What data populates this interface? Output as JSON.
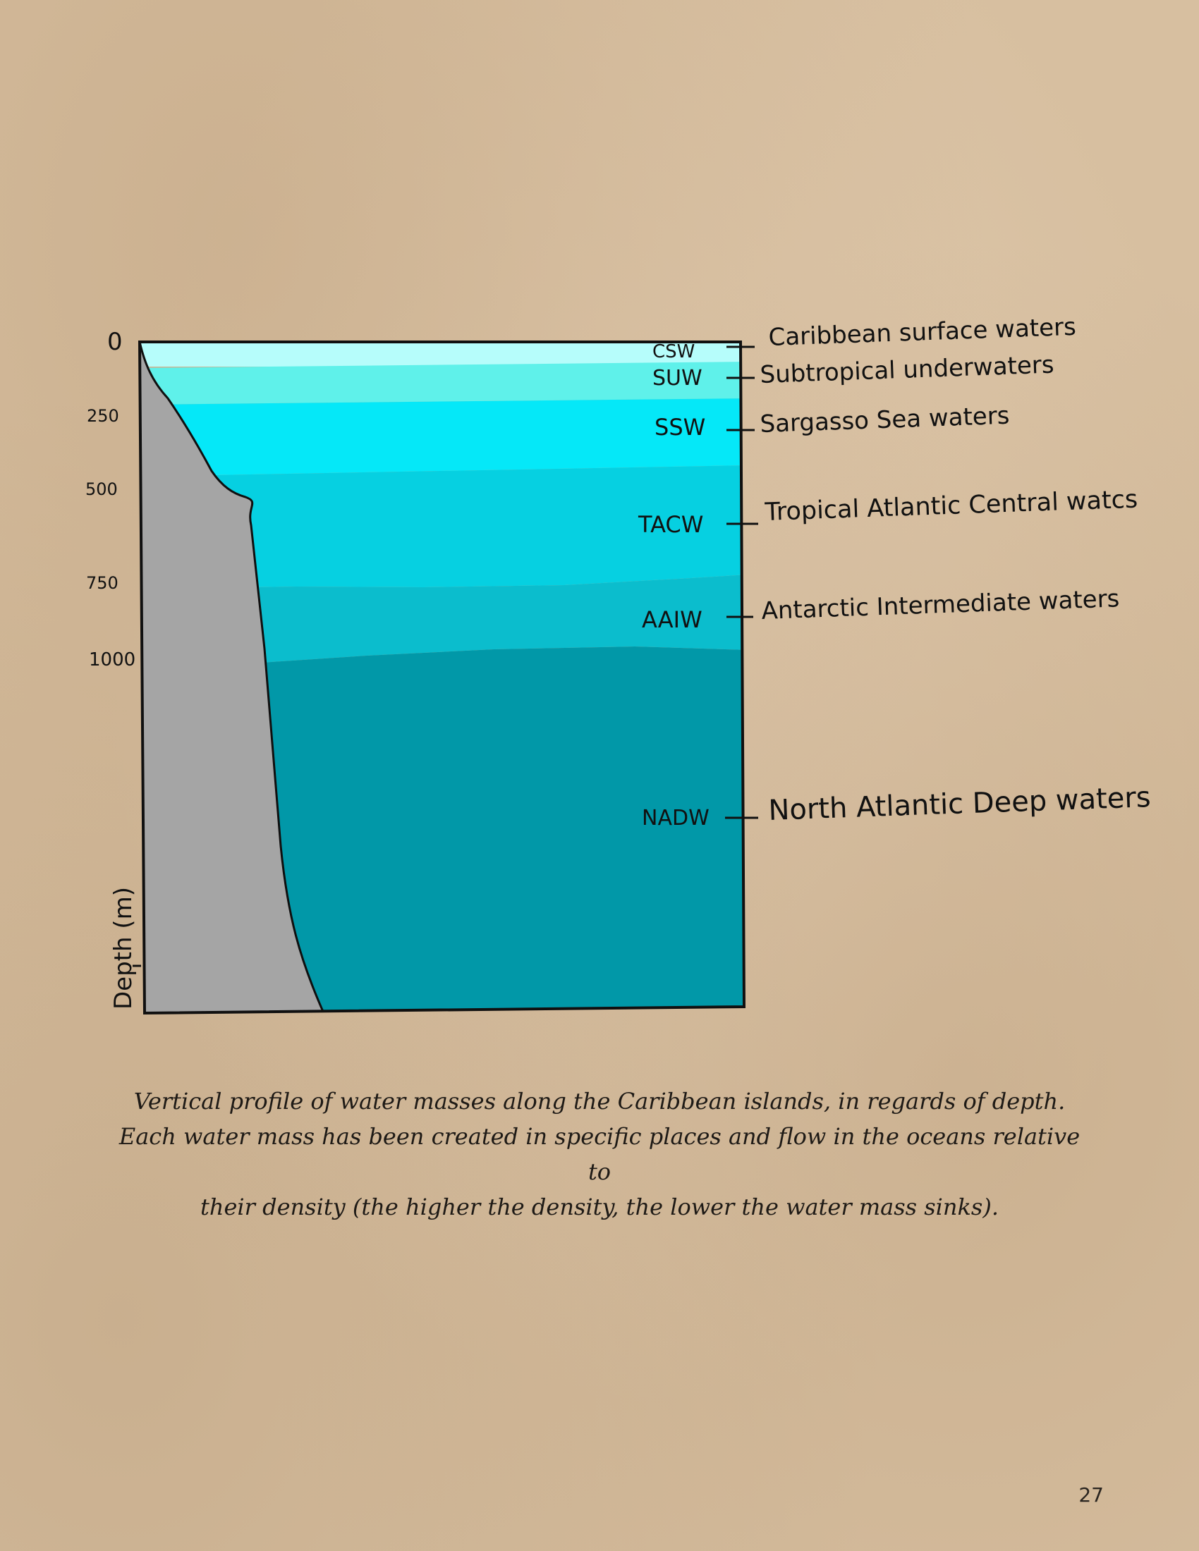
{
  "diagram": {
    "depth_axis": {
      "label": "Depth (m)",
      "ticks": [
        "0",
        "250",
        "500",
        "750",
        "1000"
      ]
    },
    "water_masses": [
      {
        "abbr": "CSW",
        "name": "Caribbean surface waters",
        "color": "#b6fdfb"
      },
      {
        "abbr": "SUW",
        "name": "Subtropical underwaters",
        "color": "#5ff1ea"
      },
      {
        "abbr": "SSW",
        "name": "Sargasso Sea waters",
        "color": "#05e8f8"
      },
      {
        "abbr": "TACW",
        "name": "Tropical Atlantic Central watcs",
        "color": "#06d0e1"
      },
      {
        "abbr": "AAIW",
        "name": "Antarctic Intermediate waters",
        "color": "#0bbdcd"
      },
      {
        "abbr": "NADW",
        "name": "North Atlantic Deep waters",
        "color": "#0198a8"
      }
    ],
    "seafloor_color": "#a5a5a5"
  },
  "caption": [
    "Vertical profile of water masses along the Caribbean islands, in regards of depth.",
    "Each water mass has been created in specific places and flow in the oceans relative to",
    "their density (the higher the density, the lower the water mass sinks)."
  ],
  "page_number": "27"
}
